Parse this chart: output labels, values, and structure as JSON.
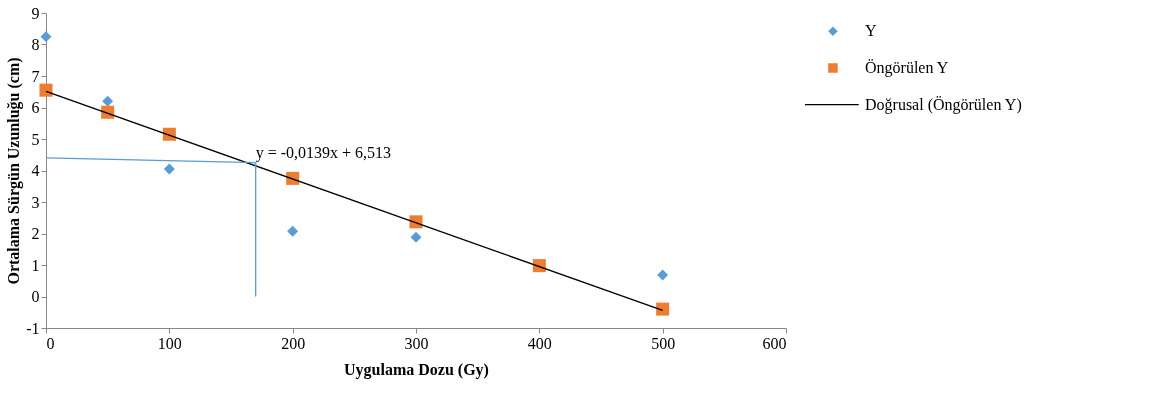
{
  "chart_data": {
    "type": "scatter",
    "xlabel": "Uygulama Dozu (Gy)",
    "ylabel": "Ortalama Sürgün Uzunluğu (cm)",
    "xlim": [
      0,
      600
    ],
    "xticks": [
      0,
      100,
      200,
      300,
      400,
      500,
      600
    ],
    "ylim": [
      -1,
      9
    ],
    "yticks": [
      -1,
      0,
      1,
      2,
      3,
      4,
      5,
      6,
      7,
      8,
      9
    ],
    "grid": false,
    "legend": "right",
    "series": [
      {
        "name": "Y",
        "marker": "diamond",
        "color": "#5b9bd5",
        "x": [
          0,
          50,
          100,
          200,
          300,
          400,
          500
        ],
        "values": [
          8.25,
          6.2,
          4.05,
          2.07,
          1.88,
          null,
          0.68
        ]
      },
      {
        "name": "Öngörülen Y",
        "marker": "square",
        "color": "#ed7d31",
        "x": [
          0,
          50,
          100,
          200,
          300,
          400,
          500
        ],
        "values": [
          6.55,
          5.85,
          5.15,
          3.75,
          2.37,
          0.98,
          -0.4
        ]
      },
      {
        "name": "Doğrusal (Öngörülen Y)",
        "type": "line",
        "line_style": "solid",
        "color": "#000000",
        "x": [
          0,
          500
        ],
        "values": [
          6.51,
          -0.44
        ]
      },
      {
        "type": "line",
        "line_style": "solid",
        "color": "#5b9bd5",
        "x": [
          0,
          170,
          170
        ],
        "values": [
          4.4,
          4.25,
          0
        ]
      }
    ],
    "annotations": [
      {
        "text": "y = -0,0139x + 6,513",
        "x": 170,
        "y": 4.3
      }
    ]
  }
}
